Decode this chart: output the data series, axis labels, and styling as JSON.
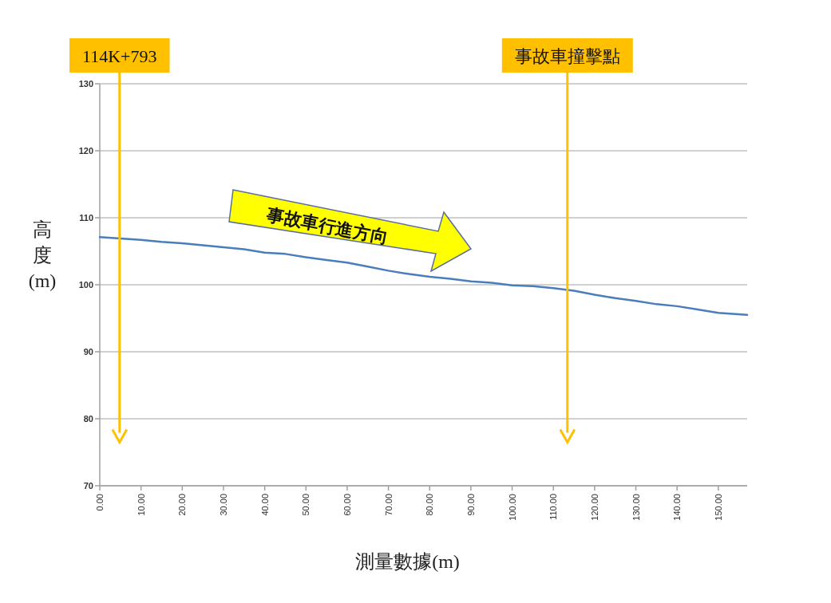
{
  "chart_data": {
    "type": "line",
    "xlabel": "測量數據(m)",
    "ylabel": "高度(m)",
    "x": [
      0,
      5,
      10,
      15,
      20,
      25,
      30,
      35,
      40,
      45,
      50,
      55,
      60,
      65,
      70,
      75,
      80,
      85,
      90,
      95,
      100,
      105,
      110,
      115,
      120,
      125,
      130,
      135,
      140,
      145,
      150,
      157
    ],
    "series": [
      {
        "color": "#4a7ebb",
        "values": [
          107.1,
          106.9,
          106.7,
          106.4,
          106.2,
          105.9,
          105.6,
          105.3,
          104.8,
          104.6,
          104.1,
          103.7,
          103.3,
          102.7,
          102.1,
          101.6,
          101.2,
          100.9,
          100.5,
          100.3,
          99.9,
          99.8,
          99.5,
          99.1,
          98.5,
          98.0,
          97.6,
          97.1,
          96.8,
          96.3,
          95.8,
          95.5
        ]
      }
    ],
    "xlim": [
      0,
      157
    ],
    "xticks": [
      {
        "value": 0,
        "label": "0.00"
      },
      {
        "value": 10,
        "label": "10.00"
      },
      {
        "value": 20,
        "label": "20.00"
      },
      {
        "value": 30,
        "label": "30.00"
      },
      {
        "value": 40,
        "label": "40.00"
      },
      {
        "value": 50,
        "label": "50.00"
      },
      {
        "value": 60,
        "label": "60.00"
      },
      {
        "value": 70,
        "label": "70.00"
      },
      {
        "value": 80,
        "label": "80.00"
      },
      {
        "value": 90,
        "label": "90.00"
      },
      {
        "value": 100,
        "label": "100.00"
      },
      {
        "value": 110,
        "label": "110.00"
      },
      {
        "value": 120,
        "label": "120.00"
      },
      {
        "value": 130,
        "label": "130.00"
      },
      {
        "value": 140,
        "label": "140.00"
      },
      {
        "value": 150,
        "label": "150.00"
      }
    ],
    "ylim": [
      70,
      130
    ],
    "yticks": [
      70,
      80,
      90,
      100,
      110,
      120,
      130
    ],
    "grid": "y",
    "marker": "none",
    "line_style": "solid",
    "ref_lines": [
      {
        "axis": "x",
        "value": 4.8,
        "label": "114K+793",
        "color": "#ffc000"
      },
      {
        "axis": "x",
        "value": 113.4,
        "label": "事故車撞擊點",
        "color": "#ffc000"
      }
    ],
    "annotations": [
      "事故車行進方向"
    ]
  }
}
